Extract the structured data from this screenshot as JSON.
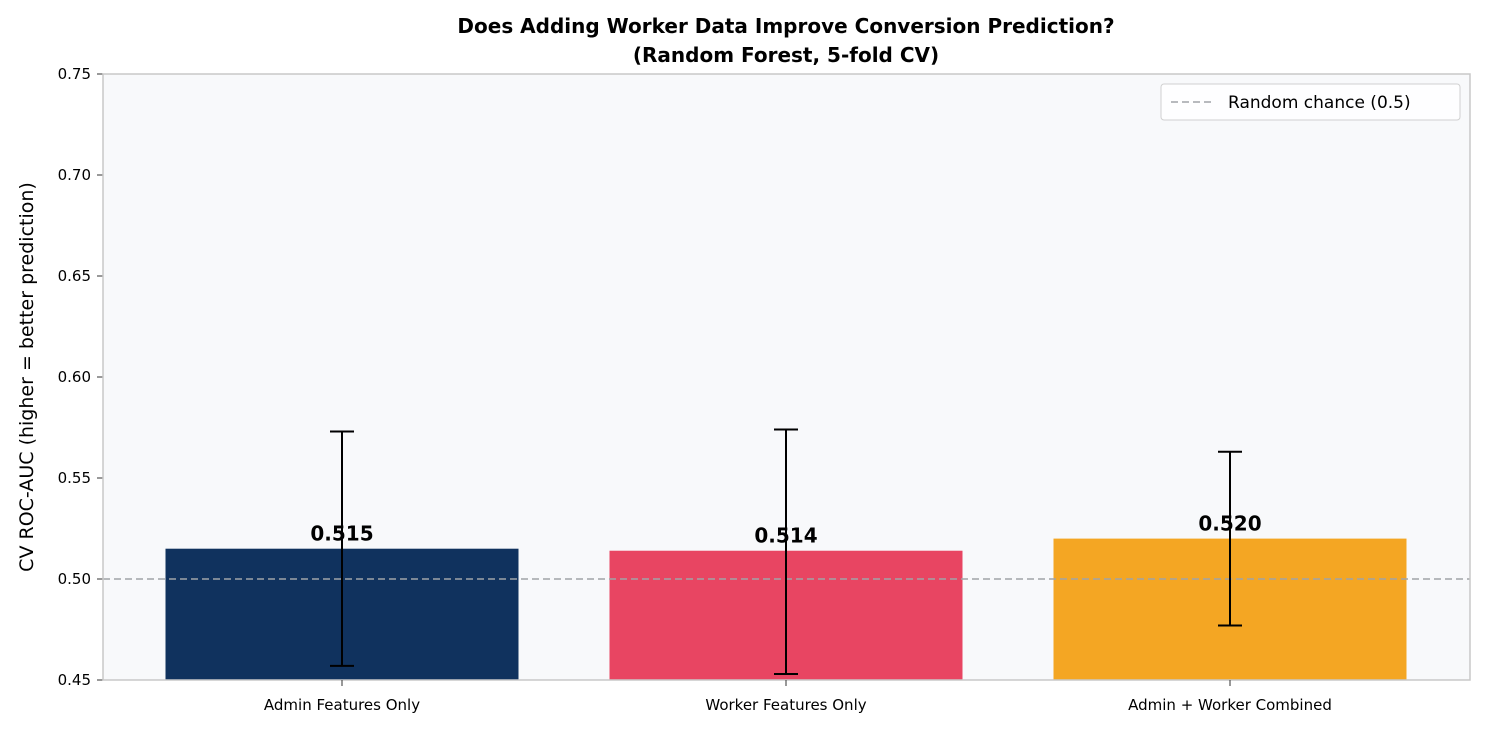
{
  "chart_data": {
    "type": "bar",
    "title_line1": "Does Adding Worker Data Improve Conversion Prediction?",
    "title_line2": "(Random Forest, 5-fold CV)",
    "xlabel": "",
    "ylabel": "CV ROC-AUC (higher = better prediction)",
    "categories": [
      "Admin Features Only",
      "Worker Features Only",
      "Admin + Worker Combined"
    ],
    "values": [
      0.515,
      0.514,
      0.52
    ],
    "value_labels": [
      "0.515",
      "0.514",
      "0.520"
    ],
    "error_low": [
      0.457,
      0.453,
      0.477
    ],
    "error_high": [
      0.573,
      0.574,
      0.563
    ],
    "colors": [
      "#10325e",
      "#e84562",
      "#f4a623"
    ],
    "ylim": [
      0.45,
      0.75
    ],
    "yticks": [
      0.45,
      0.5,
      0.55,
      0.6,
      0.65,
      0.7,
      0.75
    ],
    "ytick_labels": [
      "0.45",
      "0.50",
      "0.55",
      "0.60",
      "0.65",
      "0.70",
      "0.75"
    ],
    "reference_line": {
      "value": 0.5,
      "label": "Random chance (0.5)",
      "color": "#a0a4a8",
      "style": "dashed"
    },
    "legend_position": "top-right",
    "grid": false,
    "plot_background": "#f8f9fb"
  }
}
